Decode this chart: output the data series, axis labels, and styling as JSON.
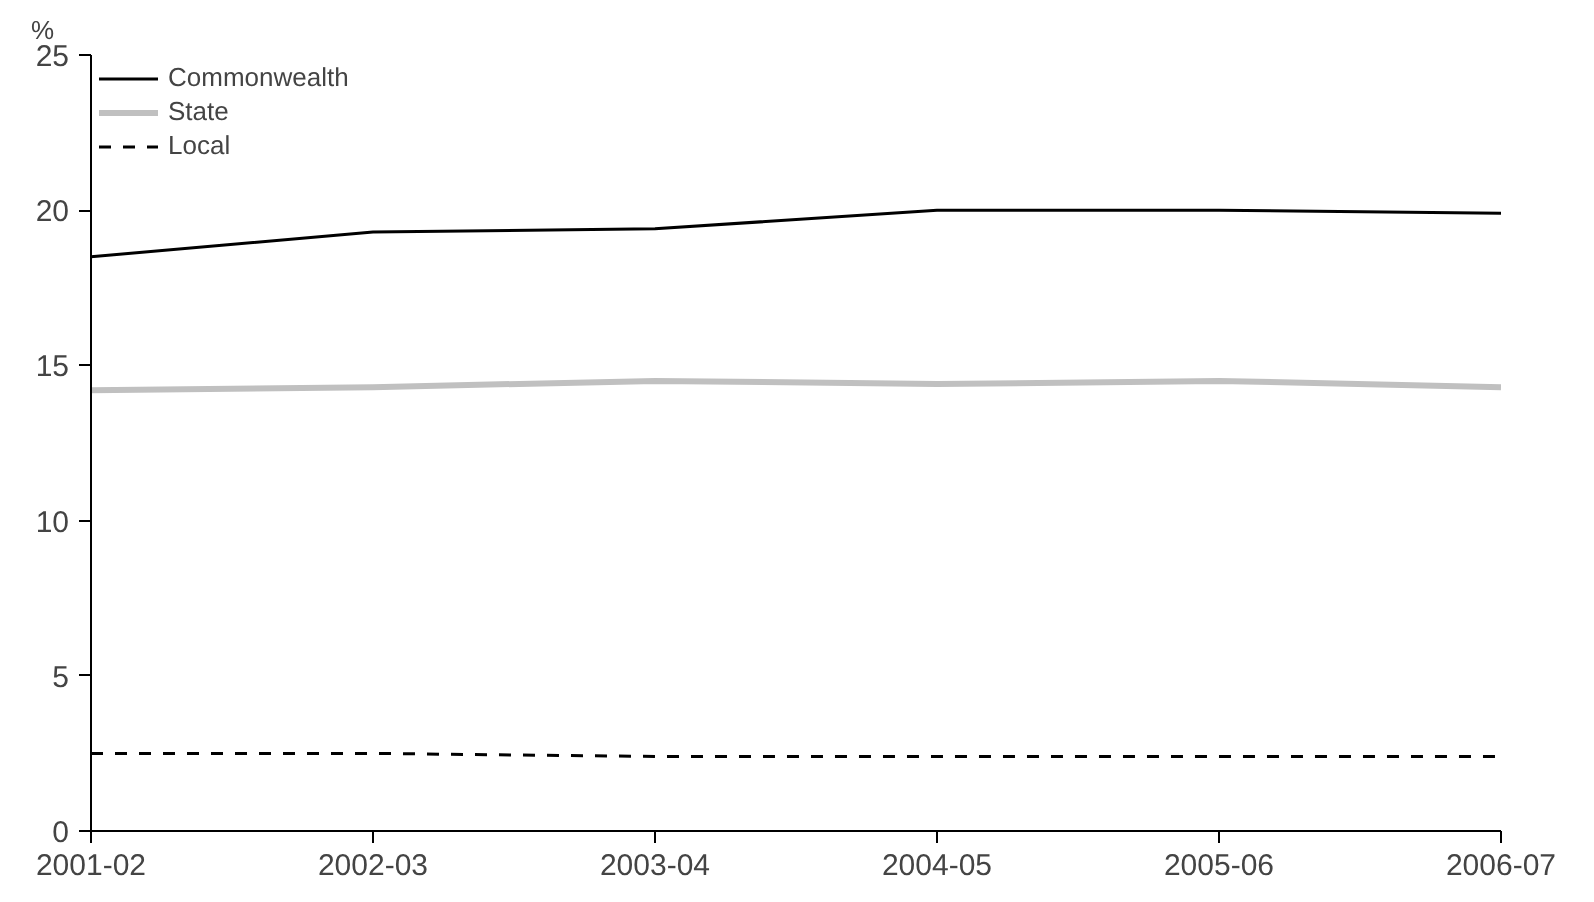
{
  "chart_data": {
    "type": "line",
    "ylabel": "%",
    "categories": [
      "2001-02",
      "2002-03",
      "2003-04",
      "2004-05",
      "2005-06",
      "2006-07"
    ],
    "series": [
      {
        "name": "Commonwealth",
        "color": "#000000",
        "values": [
          18.5,
          19.3,
          19.4,
          20.0,
          20.0,
          19.9
        ]
      },
      {
        "name": "State",
        "color": "#c0c0c0",
        "values": [
          14.2,
          14.3,
          14.5,
          14.4,
          14.5,
          14.3
        ]
      },
      {
        "name": "Local",
        "color": "#000000",
        "line_style": "dashed",
        "values": [
          2.5,
          2.5,
          2.4,
          2.4,
          2.4,
          2.4
        ]
      }
    ],
    "ylim": [
      0,
      25
    ],
    "yticks": [
      0,
      5,
      10,
      15,
      20,
      25
    ],
    "grid": false,
    "legend": "top left",
    "line_style": "solid"
  }
}
